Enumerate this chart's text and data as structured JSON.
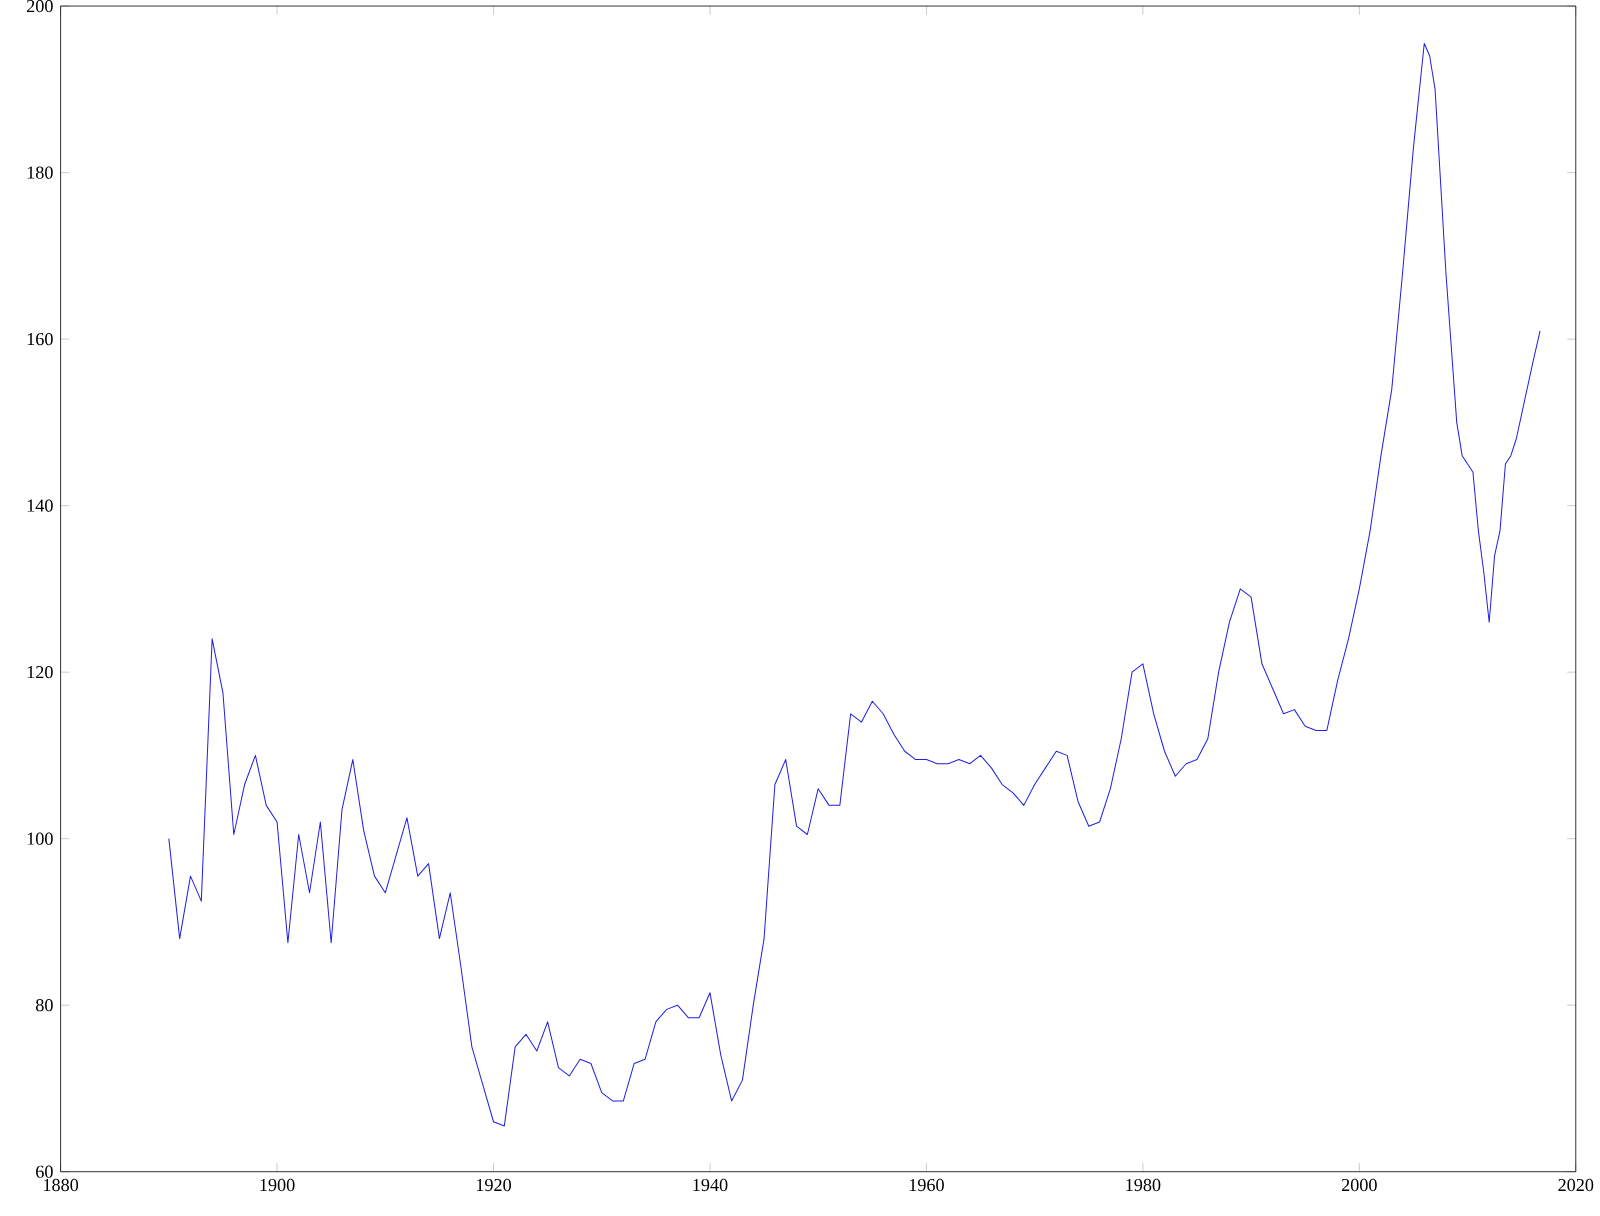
{
  "chart_data": {
    "type": "line",
    "x": [
      1890,
      1891,
      1892,
      1893,
      1894,
      1895,
      1896,
      1897,
      1898,
      1899,
      1900,
      1901,
      1902,
      1903,
      1904,
      1905,
      1906,
      1907,
      1908,
      1909,
      1910,
      1911,
      1912,
      1913,
      1914,
      1915,
      1916,
      1917,
      1918,
      1919,
      1920,
      1921,
      1922,
      1923,
      1924,
      1925,
      1926,
      1927,
      1928,
      1929,
      1930,
      1931,
      1932,
      1933,
      1934,
      1935,
      1936,
      1937,
      1938,
      1939,
      1940,
      1941,
      1942,
      1943,
      1944,
      1945,
      1946,
      1947,
      1948,
      1949,
      1950,
      1951,
      1952,
      1953,
      1954,
      1955,
      1956,
      1957,
      1958,
      1959,
      1960,
      1961,
      1962,
      1963,
      1964,
      1965,
      1966,
      1967,
      1968,
      1969,
      1970,
      1971,
      1972,
      1973,
      1974,
      1975,
      1976,
      1977,
      1978,
      1979,
      1980,
      1981,
      1982,
      1983,
      1984,
      1985,
      1986,
      1987,
      1988,
      1989,
      1990,
      1991,
      1992,
      1993,
      1994,
      1995,
      1996,
      1997,
      1998,
      1999,
      2000,
      2001,
      2002,
      2003,
      2004,
      2005,
      2006,
      2006.5,
      2007,
      2008,
      2009,
      2009.5,
      2010,
      2010.5,
      2011,
      2011.5,
      2012,
      2012.5,
      2013,
      2013.5,
      2014,
      2014.5,
      2015,
      2016,
      2016.7
    ],
    "series": [
      {
        "color": "#2020e0",
        "values": [
          100,
          88,
          95.5,
          92.5,
          124,
          117.5,
          100.5,
          106.5,
          110,
          104,
          102,
          87.5,
          100.5,
          93.5,
          102,
          87.5,
          103.5,
          109.5,
          101,
          95.5,
          93.5,
          98,
          102.5,
          95.5,
          97,
          88,
          93.5,
          84.5,
          75,
          70.5,
          66,
          65.5,
          75,
          76.5,
          74.5,
          78,
          72.5,
          71.5,
          73.5,
          73,
          69.5,
          68.5,
          68.5,
          73,
          73.5,
          78,
          79.5,
          80,
          78.5,
          78.5,
          81.5,
          74,
          68.5,
          71,
          80,
          88,
          106.5,
          109.5,
          101.5,
          100.5,
          106,
          104,
          104,
          115,
          114,
          116.5,
          115,
          112.5,
          110.5,
          109.5,
          109.5,
          109,
          109,
          109.5,
          109,
          110,
          108.5,
          106.5,
          105.5,
          104,
          106.5,
          108.5,
          110.5,
          110,
          104.5,
          101.5,
          102,
          106,
          112,
          120,
          121,
          115,
          110.5,
          107.5,
          109,
          109.5,
          112,
          120,
          126,
          130,
          129,
          121,
          118,
          115,
          115.5,
          113.5,
          113,
          113,
          119,
          124,
          130,
          137,
          146,
          154,
          168,
          183,
          195.5,
          194,
          190,
          168,
          150,
          146,
          145,
          144,
          137,
          132,
          126,
          134,
          137,
          145,
          146,
          148,
          151,
          157,
          161
        ]
      }
    ],
    "xlim": [
      1880,
      2020
    ],
    "ylim": [
      60,
      200
    ],
    "xticks": [
      1880,
      1900,
      1920,
      1940,
      1960,
      1980,
      2000,
      2020
    ],
    "yticks": [
      60,
      80,
      100,
      120,
      140,
      160,
      180,
      200
    ],
    "grid": false,
    "marker": "none",
    "line_style": "solid"
  }
}
